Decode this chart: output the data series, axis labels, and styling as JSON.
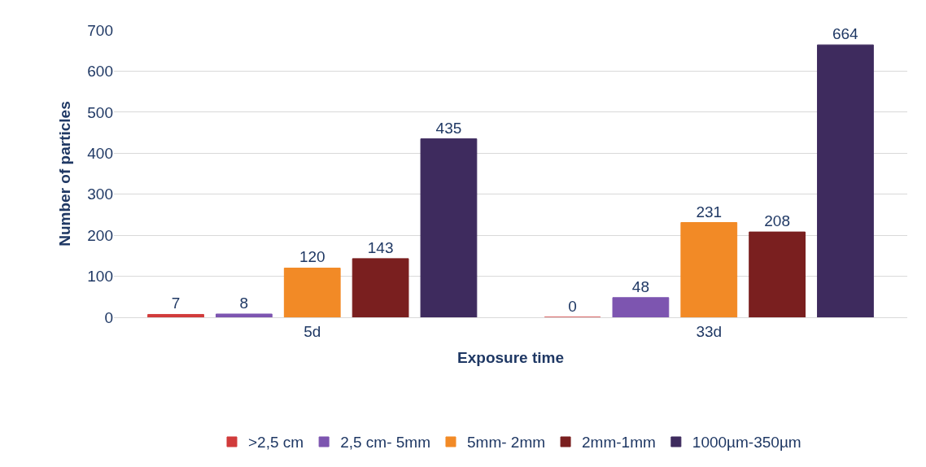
{
  "chart_data": {
    "type": "bar",
    "xlabel": "Exposure time",
    "ylabel": "Number of particles",
    "categories": [
      "5d",
      "33d"
    ],
    "series": [
      {
        "name": ">2,5 cm",
        "color": "#d13b3b",
        "values": [
          7,
          0
        ]
      },
      {
        "name": "2,5 cm- 5mm",
        "color": "#7d55b0",
        "values": [
          8,
          48
        ]
      },
      {
        "name": "5mm- 2mm",
        "color": "#f28a26",
        "values": [
          120,
          231
        ]
      },
      {
        "name": "2mm-1mm",
        "color": "#7a1f1f",
        "values": [
          143,
          208
        ]
      },
      {
        "name": "1000µm-350µm",
        "color": "#3e2b5e",
        "values": [
          435,
          664
        ]
      }
    ],
    "ylim": [
      0,
      700
    ],
    "yticks": [
      0,
      100,
      200,
      300,
      400,
      500,
      600,
      700
    ],
    "grid": "y",
    "legend": "bottom",
    "data_labels": true
  }
}
